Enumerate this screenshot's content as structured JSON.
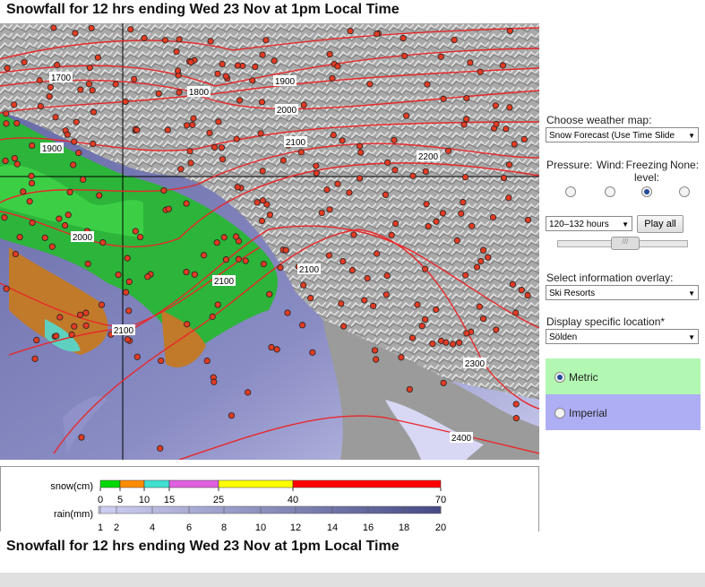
{
  "header": {
    "title": "Snowfall for 12 hrs ending Wed 23 Nov at 1pm Local Time"
  },
  "map": {
    "contour_labels": [
      "1700",
      "1800",
      "1900",
      "2000",
      "2100",
      "2200",
      "1900",
      "2000",
      "2100",
      "2100",
      "2100",
      "2300",
      "2400"
    ]
  },
  "controls": {
    "weather_map_label": "Choose weather map:",
    "weather_map_value": "Snow Forecast (Use Time Slide",
    "radios": [
      "Pressure:",
      "Wind:",
      "Freezing level:",
      "None:"
    ],
    "hours_value": "120–132 hours",
    "play_button": "Play all",
    "overlay_label": "Select information overlay:",
    "overlay_value": "Ski Resorts",
    "location_label": "Display specific location*",
    "location_value": "Sölden",
    "units": [
      "Metric",
      "Imperial"
    ]
  },
  "legend": {
    "snow_label": "snow(cm)",
    "snow_ticks": [
      0,
      5,
      10,
      15,
      25,
      40,
      70
    ],
    "rain_label": "rain(mm)",
    "rain_ticks": [
      1,
      2,
      4,
      6,
      8,
      10,
      12,
      14,
      16,
      18,
      20
    ]
  },
  "footer": {
    "title": "Snowfall for 12 hrs ending Wed 23 Nov at 1pm Local Time"
  }
}
